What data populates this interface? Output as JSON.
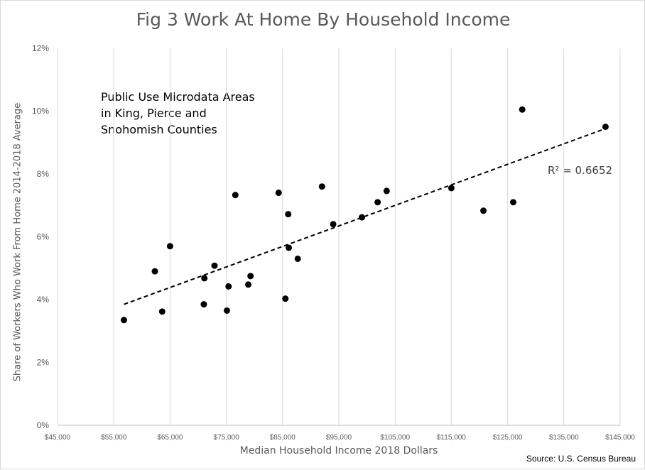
{
  "chart_data": {
    "type": "scatter",
    "title": "Fig 3 Work At Home By Household Income",
    "xlabel": "Median Household Income 2018 Dollars",
    "ylabel": "Share of Workers Who Work From Home 2014-2018 Average",
    "xlim": [
      45000,
      145000
    ],
    "ylim": [
      0,
      12
    ],
    "x_ticks": [
      45000,
      55000,
      65000,
      75000,
      85000,
      95000,
      105000,
      115000,
      125000,
      135000,
      145000
    ],
    "x_tick_labels": [
      "$45,000",
      "$55,000",
      "$65,000",
      "$75,000",
      "$85,000",
      "$95,000",
      "$105,000",
      "$115,000",
      "$125,000",
      "$135,000",
      "$145,000"
    ],
    "y_ticks": [
      0,
      2,
      4,
      6,
      8,
      10,
      12
    ],
    "y_tick_labels": [
      "0%",
      "2%",
      "4%",
      "6%",
      "8%",
      "10%",
      "12%"
    ],
    "grid": "vertical",
    "annotation": [
      "Public Use Microdata Areas",
      "in King, Pierce and",
      "Snohomish Counties"
    ],
    "r_squared_label": "R² = 0.6652",
    "trendline": {
      "x": [
        56800,
        142500
      ],
      "y": [
        3.85,
        9.45
      ],
      "style": "dashed"
    },
    "points": [
      {
        "x": 56800,
        "y": 3.35
      },
      {
        "x": 62300,
        "y": 4.9
      },
      {
        "x": 63600,
        "y": 3.62
      },
      {
        "x": 65000,
        "y": 5.7
      },
      {
        "x": 71000,
        "y": 3.85
      },
      {
        "x": 71100,
        "y": 4.68
      },
      {
        "x": 72900,
        "y": 5.08
      },
      {
        "x": 75100,
        "y": 3.65
      },
      {
        "x": 75400,
        "y": 4.42
      },
      {
        "x": 76600,
        "y": 7.33
      },
      {
        "x": 78900,
        "y": 4.48
      },
      {
        "x": 79300,
        "y": 4.75
      },
      {
        "x": 84300,
        "y": 7.4
      },
      {
        "x": 85500,
        "y": 4.03
      },
      {
        "x": 86000,
        "y": 6.72
      },
      {
        "x": 86100,
        "y": 5.65
      },
      {
        "x": 87700,
        "y": 5.3
      },
      {
        "x": 92000,
        "y": 7.6
      },
      {
        "x": 94000,
        "y": 6.4
      },
      {
        "x": 99100,
        "y": 6.62
      },
      {
        "x": 101900,
        "y": 7.1
      },
      {
        "x": 103500,
        "y": 7.46
      },
      {
        "x": 115000,
        "y": 7.55
      },
      {
        "x": 120700,
        "y": 6.83
      },
      {
        "x": 126000,
        "y": 7.1
      },
      {
        "x": 127600,
        "y": 10.05
      },
      {
        "x": 142400,
        "y": 9.5
      }
    ]
  },
  "source": "Source: U.S. Census Bureau",
  "colors": {
    "marker": "#000000",
    "grid": "#d9d9d9",
    "text": "#595959"
  }
}
